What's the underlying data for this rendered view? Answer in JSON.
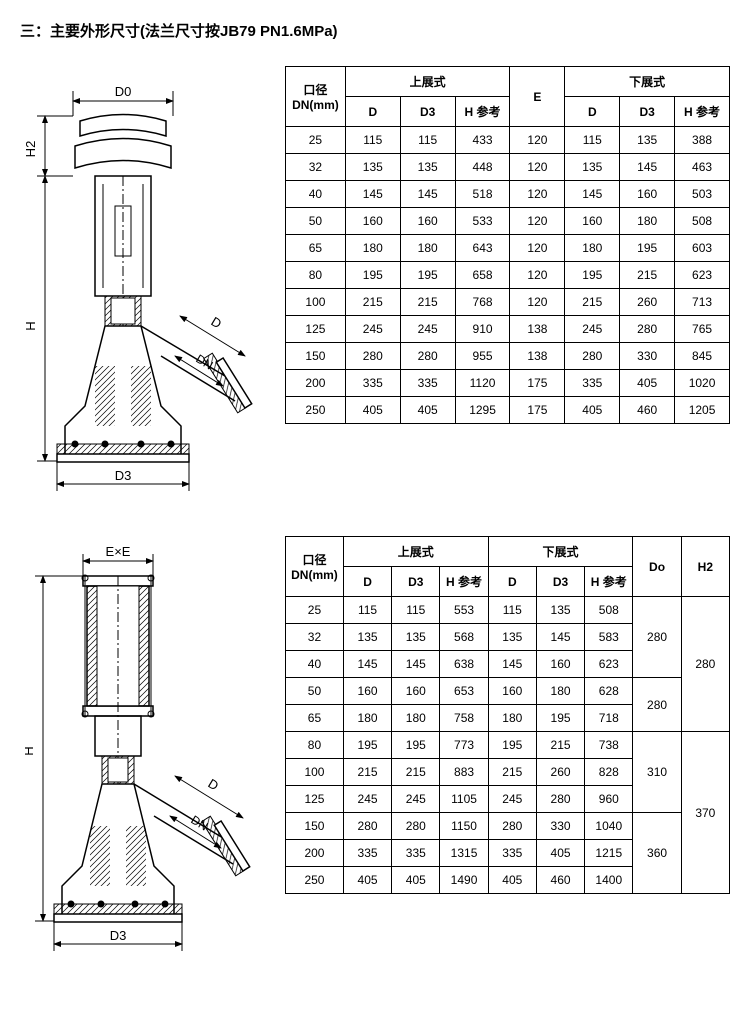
{
  "title": "三：主要外形尺寸(法兰尺寸按JB79 PN1.6MPa)",
  "labels": {
    "dn": "口径\nDN(mm)",
    "up": "上展式",
    "down": "下展式",
    "D": "D",
    "D3": "D3",
    "Href": "H 参考",
    "E": "E",
    "Do": "Do",
    "H2": "H2",
    "diag_D0": "D0",
    "diag_H2": "H2",
    "diag_H": "H",
    "diag_D": "D",
    "diag_DN": "DN",
    "diag_D3": "D3",
    "diag_ExE": "E×E"
  },
  "table1": {
    "rows": [
      {
        "dn": "25",
        "uD": "115",
        "uD3": "115",
        "uH": "433",
        "E": "120",
        "dD": "115",
        "dD3": "135",
        "dH": "388"
      },
      {
        "dn": "32",
        "uD": "135",
        "uD3": "135",
        "uH": "448",
        "E": "120",
        "dD": "135",
        "dD3": "145",
        "dH": "463"
      },
      {
        "dn": "40",
        "uD": "145",
        "uD3": "145",
        "uH": "518",
        "E": "120",
        "dD": "145",
        "dD3": "160",
        "dH": "503"
      },
      {
        "dn": "50",
        "uD": "160",
        "uD3": "160",
        "uH": "533",
        "E": "120",
        "dD": "160",
        "dD3": "180",
        "dH": "508"
      },
      {
        "dn": "65",
        "uD": "180",
        "uD3": "180",
        "uH": "643",
        "E": "120",
        "dD": "180",
        "dD3": "195",
        "dH": "603"
      },
      {
        "dn": "80",
        "uD": "195",
        "uD3": "195",
        "uH": "658",
        "E": "120",
        "dD": "195",
        "dD3": "215",
        "dH": "623"
      },
      {
        "dn": "100",
        "uD": "215",
        "uD3": "215",
        "uH": "768",
        "E": "120",
        "dD": "215",
        "dD3": "260",
        "dH": "713"
      },
      {
        "dn": "125",
        "uD": "245",
        "uD3": "245",
        "uH": "910",
        "E": "138",
        "dD": "245",
        "dD3": "280",
        "dH": "765"
      },
      {
        "dn": "150",
        "uD": "280",
        "uD3": "280",
        "uH": "955",
        "E": "138",
        "dD": "280",
        "dD3": "330",
        "dH": "845"
      },
      {
        "dn": "200",
        "uD": "335",
        "uD3": "335",
        "uH": "1120",
        "E": "175",
        "dD": "335",
        "dD3": "405",
        "dH": "1020"
      },
      {
        "dn": "250",
        "uD": "405",
        "uD3": "405",
        "uH": "1295",
        "E": "175",
        "dD": "405",
        "dD3": "460",
        "dH": "1205"
      }
    ]
  },
  "table2": {
    "rows": [
      {
        "dn": "25",
        "uD": "115",
        "uD3": "115",
        "uH": "553",
        "dD": "115",
        "dD3": "135",
        "dH": "508"
      },
      {
        "dn": "32",
        "uD": "135",
        "uD3": "135",
        "uH": "568",
        "dD": "135",
        "dD3": "145",
        "dH": "583"
      },
      {
        "dn": "40",
        "uD": "145",
        "uD3": "145",
        "uH": "638",
        "dD": "145",
        "dD3": "160",
        "dH": "623"
      },
      {
        "dn": "50",
        "uD": "160",
        "uD3": "160",
        "uH": "653",
        "dD": "160",
        "dD3": "180",
        "dH": "628"
      },
      {
        "dn": "65",
        "uD": "180",
        "uD3": "180",
        "uH": "758",
        "dD": "180",
        "dD3": "195",
        "dH": "718"
      },
      {
        "dn": "80",
        "uD": "195",
        "uD3": "195",
        "uH": "773",
        "dD": "195",
        "dD3": "215",
        "dH": "738"
      },
      {
        "dn": "100",
        "uD": "215",
        "uD3": "215",
        "uH": "883",
        "dD": "215",
        "dD3": "260",
        "dH": "828"
      },
      {
        "dn": "125",
        "uD": "245",
        "uD3": "245",
        "uH": "1105",
        "dD": "245",
        "dD3": "280",
        "dH": "960"
      },
      {
        "dn": "150",
        "uD": "280",
        "uD3": "280",
        "uH": "1150",
        "dD": "280",
        "dD3": "330",
        "dH": "1040"
      },
      {
        "dn": "200",
        "uD": "335",
        "uD3": "335",
        "uH": "1315",
        "dD": "335",
        "dD3": "405",
        "dH": "1215"
      },
      {
        "dn": "250",
        "uD": "405",
        "uD3": "405",
        "uH": "1490",
        "dD": "405",
        "dD3": "460",
        "dH": "1400"
      }
    ],
    "Do": [
      {
        "span": 3,
        "v": "280"
      },
      {
        "span": 2,
        "v": "280"
      },
      {
        "span": 3,
        "v": "310"
      },
      {
        "span": 3,
        "v": "360"
      }
    ],
    "H2": [
      {
        "span": 5,
        "v": "280"
      },
      {
        "span": 6,
        "v": "370"
      }
    ]
  },
  "style": {
    "stroke": "#000",
    "hatch": "#000",
    "font": "SimSun"
  }
}
